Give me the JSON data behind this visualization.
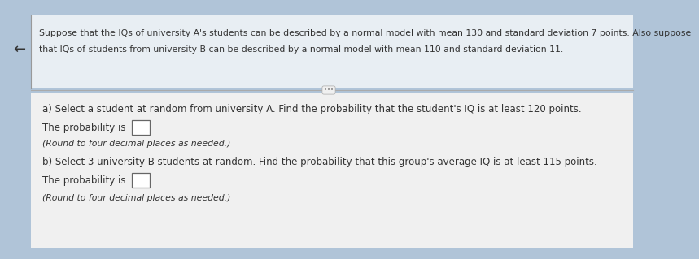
{
  "bg_color": "#b0c4d8",
  "header_panel_color": "#e8eef3",
  "body_panel_color": "#f0f0f0",
  "arrow_symbol": "←",
  "header_text_line1": "Suppose that the IQs of university A's students can be described by a normal model with mean 130 and standard deviation 7 points. Also suppose",
  "header_text_line2": "that IQs of students from university B can be described by a normal model with mean 110 and standard deviation 11.",
  "part_a_question": "a) Select a student at random from university A. Find the probability that the student's IQ is at least 120 points.",
  "part_a_answer_prefix": "The probability is",
  "part_a_note": "(Round to four decimal places as needed.)",
  "part_b_question": "b) Select 3 university B students at random. Find the probability that this group's average IQ is at least 115 points.",
  "part_b_answer_prefix": "The probability is",
  "part_b_note": "(Round to four decimal places as needed.)",
  "header_fontsize": 7.8,
  "body_fontsize": 8.5,
  "small_fontsize": 7.8,
  "text_color": "#333333",
  "divider_color": "#aaaaaa",
  "box_edge_color": "#666666"
}
